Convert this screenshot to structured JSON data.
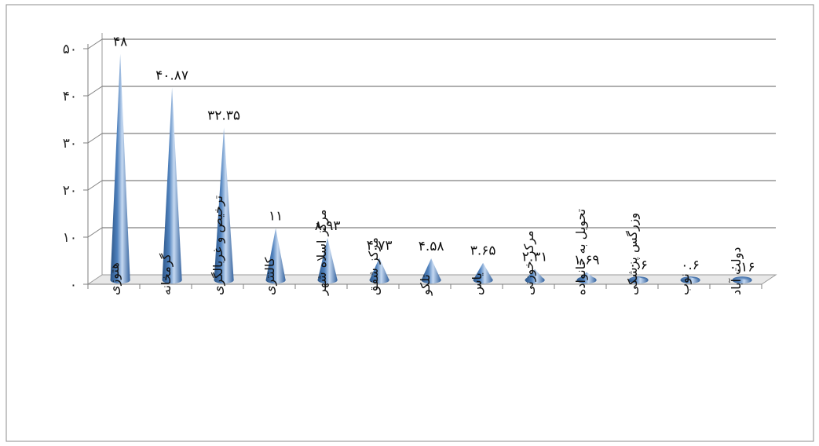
{
  "chart_data": {
    "type": "bar",
    "categories": [
      "هتوزی",
      "گرمخانه",
      "ترخیص و غربالگری",
      "کالتتری",
      "مرکز اسلاه شهر",
      "مرکز شفق",
      "تلکو",
      "یاس",
      "مرکز خوزنی",
      "تحویل به خانواده",
      "وزرگس پزشکی",
      "نوب",
      "دولت آباد"
    ],
    "values": [
      48,
      40.87,
      32.35,
      11,
      8.93,
      4.73,
      4.58,
      3.65,
      2.31,
      1.69,
      0.6,
      0.6,
      0.16
    ],
    "value_labels": [
      "۴۸",
      "۴۰.۸۷",
      "۳۲.۳۵",
      "۱۱",
      "۸.۹۳",
      "۴.۷۳",
      "۴.۵۸",
      "۳.۶۵",
      "۲.۳۱",
      "۱.۶۹",
      "۰.۶",
      "۰.۶",
      "۰.۱۶"
    ],
    "yticks": [
      "۰",
      "۱۰",
      "۲۰",
      "۳۰",
      "۴۰",
      "۵۰"
    ],
    "ylim": [
      0,
      50
    ],
    "grid": true,
    "shape": "cone",
    "colors": {
      "cone": "#4f81bd",
      "cone_light": "#c6d9f1",
      "cone_dark": "#2b5485",
      "grid": "#7f7f7f"
    }
  }
}
